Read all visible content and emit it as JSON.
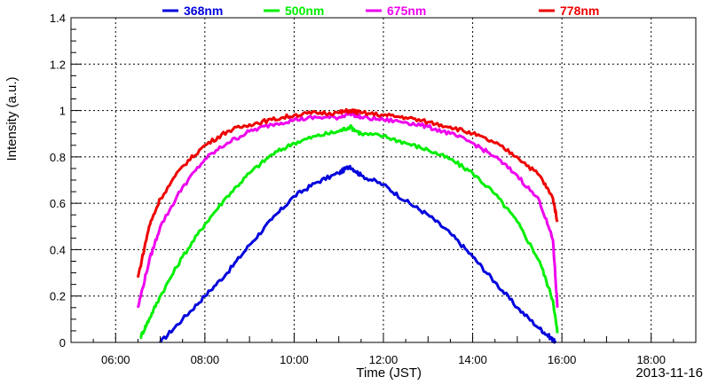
{
  "chart_data": {
    "type": "line",
    "title": "",
    "xlabel": "Time (JST)",
    "ylabel": "Intensity (a.u.)",
    "date_label": "2013-11-16",
    "x_unit": "hours (JST)",
    "xlim": [
      5.0,
      19.0
    ],
    "ylim": [
      0,
      1.4
    ],
    "grid": true,
    "legend": "top",
    "x_ticks": [
      {
        "value": 6,
        "label": "06:00"
      },
      {
        "value": 8,
        "label": "08:00"
      },
      {
        "value": 10,
        "label": "10:00"
      },
      {
        "value": 12,
        "label": "12:00"
      },
      {
        "value": 14,
        "label": "14:00"
      },
      {
        "value": 16,
        "label": "16:00"
      },
      {
        "value": 18,
        "label": "18:00"
      }
    ],
    "y_ticks": [
      {
        "value": 0,
        "label": "0"
      },
      {
        "value": 0.2,
        "label": "0.2"
      },
      {
        "value": 0.4,
        "label": "0.4"
      },
      {
        "value": 0.6,
        "label": "0.6"
      },
      {
        "value": 0.8,
        "label": "0.8"
      },
      {
        "value": 1.0,
        "label": "1"
      },
      {
        "value": 1.2,
        "label": "1.2"
      },
      {
        "value": 1.4,
        "label": "1.4"
      }
    ],
    "series": [
      {
        "name": "368nm",
        "color": "#0000dd",
        "x": [
          7.0,
          7.5,
          8.0,
          8.5,
          9.0,
          9.5,
          10.0,
          10.5,
          11.0,
          11.25,
          11.5,
          12.0,
          12.5,
          13.0,
          13.5,
          14.0,
          14.5,
          15.0,
          15.5,
          15.75,
          15.85
        ],
        "y": [
          0.0,
          0.1,
          0.2,
          0.3,
          0.42,
          0.53,
          0.63,
          0.69,
          0.73,
          0.76,
          0.72,
          0.68,
          0.61,
          0.55,
          0.47,
          0.37,
          0.26,
          0.15,
          0.06,
          0.02,
          0.0
        ]
      },
      {
        "name": "500nm",
        "color": "#00ee00",
        "x": [
          6.55,
          6.75,
          7.0,
          7.5,
          8.0,
          8.5,
          9.0,
          9.5,
          10.0,
          10.5,
          11.0,
          11.25,
          11.5,
          12.0,
          12.5,
          13.0,
          13.5,
          14.0,
          14.5,
          15.0,
          15.5,
          15.8,
          15.9
        ],
        "y": [
          0.02,
          0.1,
          0.2,
          0.37,
          0.51,
          0.63,
          0.73,
          0.81,
          0.86,
          0.89,
          0.91,
          0.93,
          0.9,
          0.89,
          0.86,
          0.83,
          0.79,
          0.73,
          0.64,
          0.52,
          0.35,
          0.18,
          0.04
        ]
      },
      {
        "name": "675nm",
        "color": "#ee00ee",
        "x": [
          6.5,
          6.75,
          7.0,
          7.5,
          8.0,
          8.5,
          9.0,
          9.5,
          10.0,
          10.5,
          11.0,
          11.25,
          11.5,
          12.0,
          12.5,
          13.0,
          13.5,
          14.0,
          14.5,
          15.0,
          15.5,
          15.8,
          15.9
        ],
        "y": [
          0.15,
          0.35,
          0.5,
          0.67,
          0.79,
          0.86,
          0.91,
          0.94,
          0.96,
          0.97,
          0.97,
          0.99,
          0.97,
          0.96,
          0.95,
          0.93,
          0.9,
          0.86,
          0.8,
          0.72,
          0.61,
          0.44,
          0.15
        ]
      },
      {
        "name": "778nm",
        "color": "#ee0000",
        "x": [
          6.5,
          6.75,
          7.0,
          7.5,
          8.0,
          8.5,
          9.0,
          9.5,
          10.0,
          10.5,
          11.0,
          11.25,
          11.5,
          12.0,
          12.5,
          13.0,
          13.5,
          14.0,
          14.5,
          15.0,
          15.5,
          15.8,
          15.9
        ],
        "y": [
          0.28,
          0.5,
          0.62,
          0.76,
          0.85,
          0.91,
          0.94,
          0.96,
          0.98,
          0.99,
          0.99,
          1.0,
          0.99,
          0.98,
          0.97,
          0.95,
          0.93,
          0.9,
          0.86,
          0.8,
          0.72,
          0.62,
          0.52
        ]
      }
    ]
  }
}
